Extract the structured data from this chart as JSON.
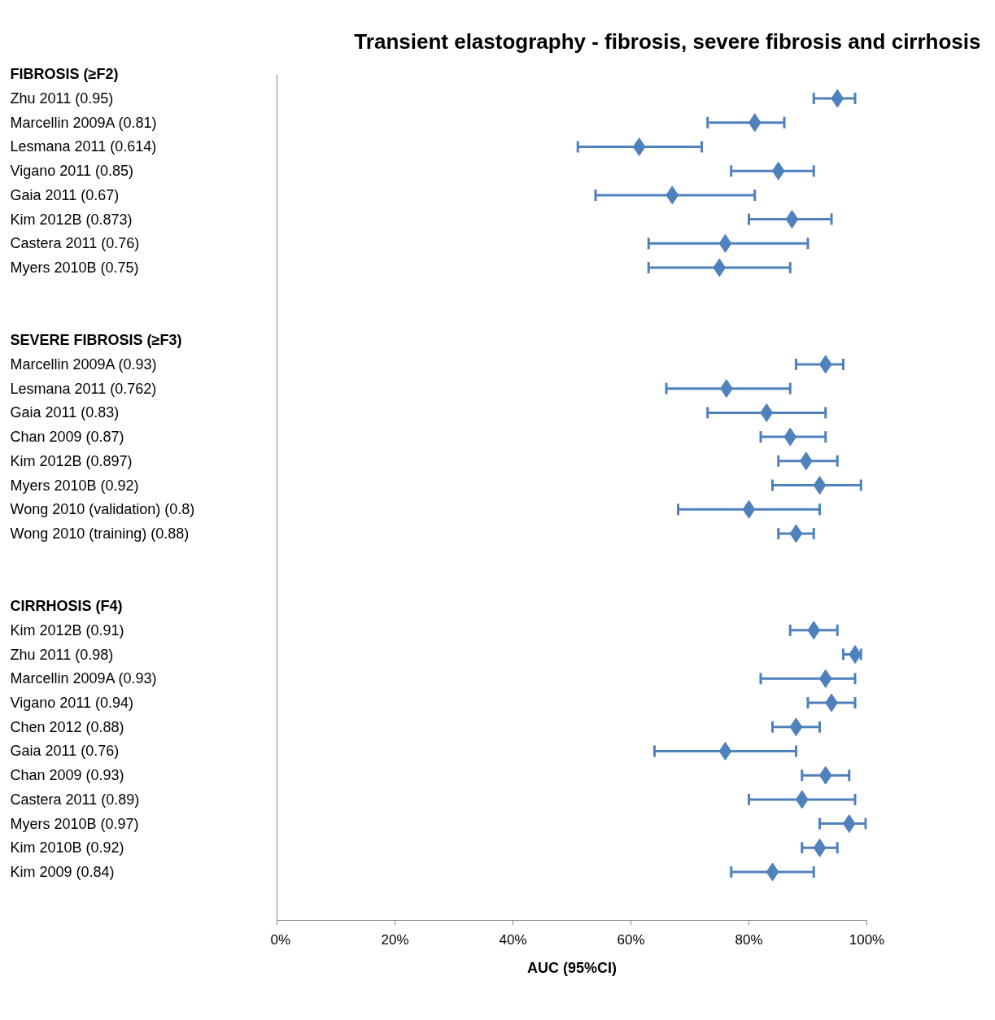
{
  "chart_data": {
    "type": "scatter",
    "orientation": "horizontal",
    "title": "Transient elastography - fibrosis, severe fibrosis and cirrhosis",
    "xlabel": "AUC (95%CI)",
    "categories": [
      "FIBROSIS (≥F2)",
      "Zhu 2011 (0.95)",
      "Marcellin 2009A (0.81)",
      "Lesmana 2011 (0.614)",
      "Vigano 2011 (0.85)",
      "Gaia 2011 (0.67)",
      "Kim 2012B (0.873)",
      "Castera 2011 (0.76)",
      "Myers 2010B (0.75)",
      null,
      null,
      "SEVERE FIBROSIS (≥F3)",
      "Marcellin 2009A (0.93)",
      "Lesmana 2011 (0.762)",
      "Gaia 2011 (0.83)",
      "Chan 2009 (0.87)",
      "Kim 2012B (0.897)",
      "Myers 2010B (0.92)",
      "Wong 2010 (validation) (0.8)",
      "Wong 2010 (training) (0.88)",
      null,
      null,
      "CIRRHOSIS (F4)",
      "Kim 2012B (0.91)",
      "Zhu 2011 (0.98)",
      "Marcellin 2009A (0.93)",
      "Vigano 2011 (0.94)",
      "Chen 2012 (0.88)",
      "Gaia 2011 (0.76)",
      "Chan 2009 (0.93)",
      "Castera 2011 (0.89)",
      "Myers 2010B (0.97)",
      "Kim 2010B (0.92)",
      "Kim 2009 (0.84)"
    ],
    "values": [
      null,
      95,
      81,
      61.4,
      85,
      67,
      87.3,
      76,
      75,
      null,
      null,
      null,
      93,
      76.2,
      83,
      87,
      89.7,
      92,
      80,
      88,
      null,
      null,
      null,
      91,
      98,
      93,
      94,
      88,
      76,
      93,
      89,
      97,
      92,
      84
    ],
    "errors": [
      null,
      [
        91,
        98
      ],
      [
        73,
        86
      ],
      [
        51,
        72
      ],
      [
        77,
        91
      ],
      [
        54,
        81
      ],
      [
        80,
        94
      ],
      [
        63,
        90
      ],
      [
        63,
        87
      ],
      null,
      null,
      null,
      [
        88,
        96
      ],
      [
        66,
        87
      ],
      [
        73,
        93
      ],
      [
        82,
        93
      ],
      [
        85,
        95
      ],
      [
        84,
        99
      ],
      [
        68,
        92
      ],
      [
        85,
        91
      ],
      null,
      null,
      null,
      [
        87,
        95
      ],
      [
        96,
        99
      ],
      [
        82,
        98
      ],
      [
        90,
        98
      ],
      [
        84,
        92
      ],
      [
        64,
        88
      ],
      [
        89,
        97
      ],
      [
        80,
        98
      ],
      [
        92,
        99.8
      ],
      [
        89,
        95
      ],
      [
        77,
        91
      ]
    ],
    "color": "#4f81bd",
    "marker": "diamond",
    "xlim": [
      0,
      100
    ],
    "xticks": [
      {
        "value": 0,
        "label": "0%"
      },
      {
        "value": 20,
        "label": "20%"
      },
      {
        "value": 40,
        "label": "40%"
      },
      {
        "value": 60,
        "label": "60%"
      },
      {
        "value": 80,
        "label": "80%"
      },
      {
        "value": 100,
        "label": "100%"
      }
    ]
  }
}
